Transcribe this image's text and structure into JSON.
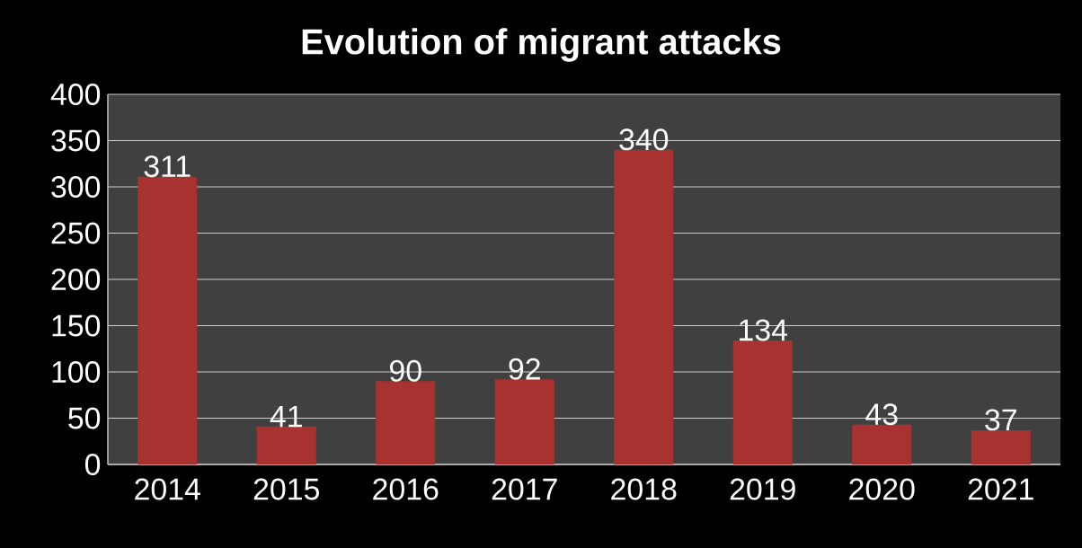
{
  "chart_data": {
    "type": "bar",
    "title": "Evolution of migrant attacks",
    "categories": [
      "2014",
      "2015",
      "2016",
      "2017",
      "2018",
      "2019",
      "2020",
      "2021"
    ],
    "values": [
      311,
      41,
      90,
      92,
      340,
      134,
      43,
      37
    ],
    "color": "#a83230",
    "ylim": [
      0,
      400
    ],
    "yticks": [
      0,
      50,
      100,
      150,
      200,
      250,
      300,
      350,
      400
    ],
    "grid": "y",
    "data_labels": true
  }
}
